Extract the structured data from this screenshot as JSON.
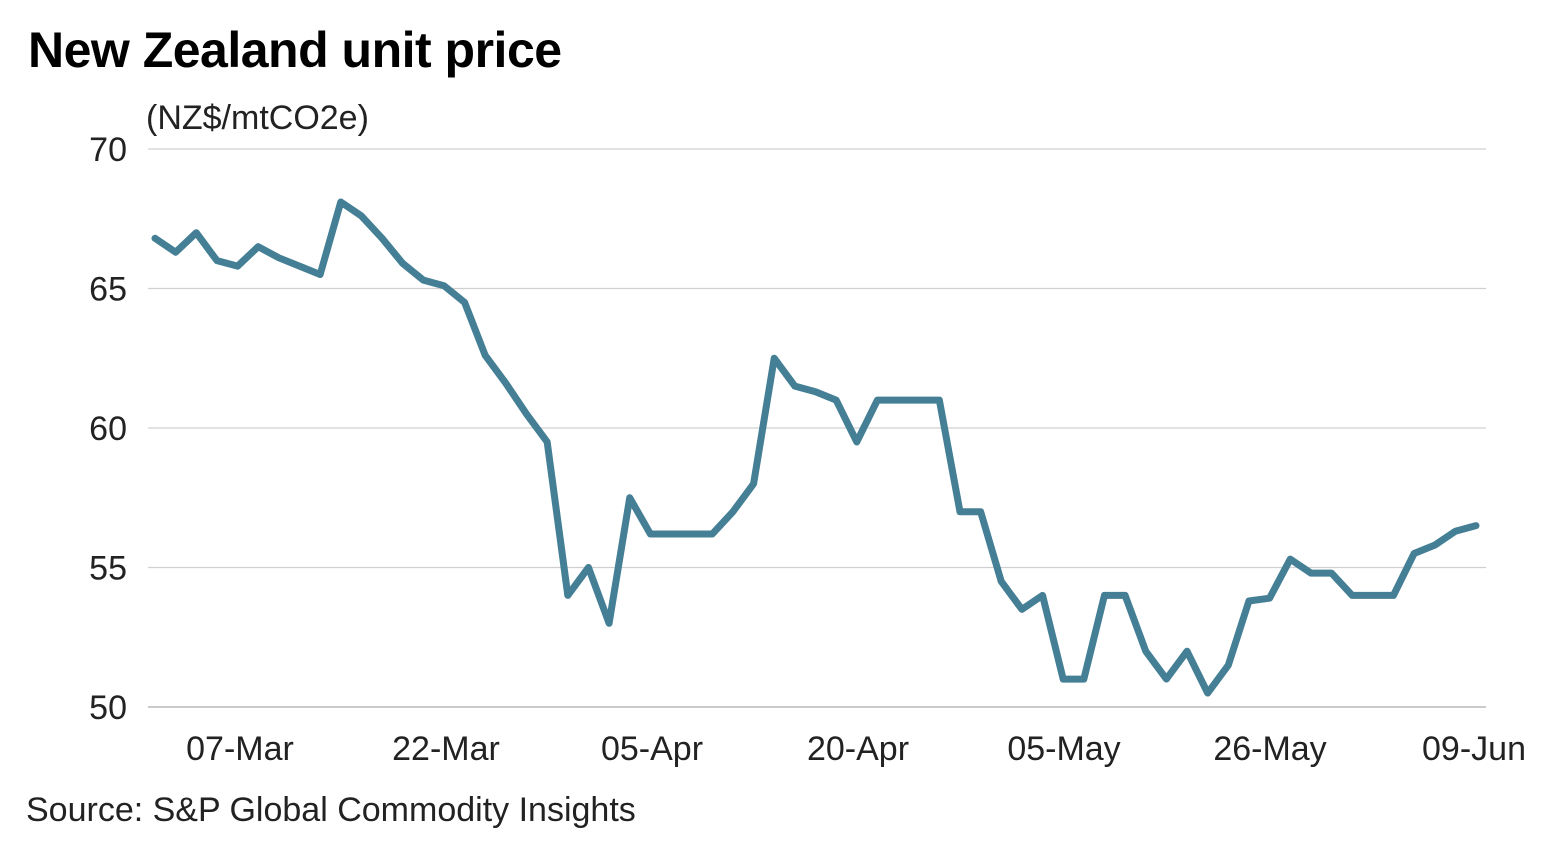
{
  "title": "New Zealand unit price",
  "source": "Source: S&P Global Commodity Insights",
  "colors": {
    "line": "#447F95",
    "grid": "#D0D0D0",
    "text": "#222222"
  },
  "chart_data": {
    "type": "line",
    "title": "New Zealand unit price",
    "ylabel": "(NZ$/mtCO2e)",
    "xlabel": "",
    "ylim": [
      50,
      70
    ],
    "yticks": [
      50,
      55,
      60,
      65,
      70
    ],
    "xticks": [
      "07-Mar",
      "22-Mar",
      "05-Apr",
      "20-Apr",
      "05-May",
      "26-May",
      "09-Jun"
    ],
    "grid": "horizontal",
    "legend": "none",
    "series": [
      {
        "values": [
          66.8,
          66.3,
          67.0,
          66.0,
          65.8,
          66.5,
          66.1,
          65.8,
          65.5,
          68.1,
          67.6,
          66.8,
          65.9,
          65.3,
          65.1,
          64.5,
          62.6,
          61.6,
          60.5,
          59.5,
          54.0,
          55.0,
          53.0,
          57.5,
          56.2,
          56.2,
          56.2,
          56.2,
          57.0,
          58.0,
          62.5,
          61.5,
          61.3,
          61.0,
          59.5,
          61.0,
          61.0,
          61.0,
          61.0,
          57.0,
          57.0,
          54.5,
          53.5,
          54.0,
          51.0,
          51.0,
          54.0,
          54.0,
          52.0,
          51.0,
          52.0,
          50.5,
          51.5,
          53.8,
          53.9,
          55.3,
          54.8,
          54.8,
          54.0,
          54.0,
          54.0,
          55.5,
          55.8,
          56.3,
          56.5
        ]
      }
    ]
  }
}
